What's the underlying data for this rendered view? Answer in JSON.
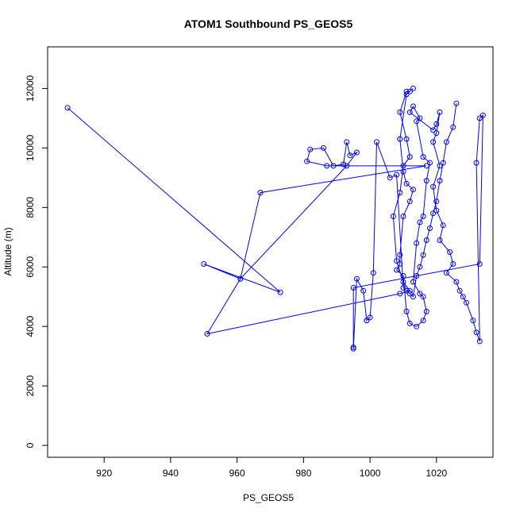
{
  "chart_data": {
    "type": "scatter",
    "title": "ATOM1 Southbound PS_GEOS5",
    "xlabel": "PS_GEOS5",
    "ylabel": "Altitude (m)",
    "xlim": [
      903,
      1037
    ],
    "ylim": [
      -400,
      13400
    ],
    "xticks": [
      920,
      940,
      960,
      980,
      1000,
      1020
    ],
    "yticks": [
      0,
      2000,
      4000,
      6000,
      8000,
      10000,
      12000
    ],
    "grid": false,
    "legend": "none",
    "colors": {
      "series": "#0000ff",
      "axis": "#000000",
      "background": "#ffffff"
    },
    "series": [
      {
        "marker": "open-circle",
        "line": true,
        "x": [
          909,
          973,
          950,
          961,
          967,
          1017,
          987,
          981,
          982,
          986,
          989,
          992,
          993,
          994,
          996,
          993,
          961,
          951,
          1009,
          1012,
          1010,
          1008,
          1007,
          1009,
          1010,
          1012,
          1011,
          1009,
          1011,
          1012,
          1013,
          1011,
          1009,
          1010,
          1011,
          1013,
          1012,
          1010,
          1009,
          1009,
          1008,
          1010,
          1011,
          1012,
          1014,
          1016,
          1017,
          1016,
          1015,
          1013,
          1014,
          1015,
          1016,
          1017,
          1018,
          1016,
          1014,
          1015,
          1013,
          1012,
          1019,
          1020,
          1021,
          1020,
          1019,
          1021,
          1019,
          1020,
          1022,
          1021,
          1024,
          1025,
          1023,
          1026,
          1027,
          1028,
          1029,
          1031,
          1032,
          1033,
          1032,
          1033,
          1034,
          1033,
          995,
          995,
          995,
          996,
          998,
          999,
          999,
          1000,
          1001,
          1002,
          1006,
          1008,
          1010,
          1011,
          1012,
          1013,
          1014,
          1015,
          1016,
          1017,
          1018,
          1019,
          1020,
          1021,
          1022,
          1023,
          1025,
          1026
        ],
        "y": [
          11350,
          5150,
          6100,
          5600,
          8500,
          9400,
          9400,
          9550,
          9950,
          10000,
          9400,
          9450,
          10200,
          9750,
          9850,
          9400,
          5600,
          3750,
          5100,
          5200,
          5500,
          6200,
          7700,
          8500,
          9400,
          9700,
          10300,
          11200,
          11900,
          11900,
          12000,
          11800,
          10300,
          9200,
          8800,
          8600,
          8200,
          7700,
          6400,
          6100,
          5900,
          5700,
          4500,
          4100,
          4000,
          4200,
          4500,
          5000,
          5100,
          5500,
          6800,
          7500,
          7700,
          8900,
          9500,
          9700,
          10900,
          11000,
          11400,
          11200,
          10600,
          10800,
          11200,
          10500,
          10200,
          9400,
          8700,
          7900,
          7400,
          6900,
          6500,
          6100,
          5800,
          5500,
          5200,
          5000,
          4800,
          4200,
          3800,
          3500,
          9500,
          11000,
          11100,
          6100,
          5300,
          3300,
          3250,
          5600,
          5200,
          4200,
          4200,
          4300,
          5800,
          10200,
          9000,
          9100,
          5300,
          5200,
          5100,
          5000,
          5700,
          6000,
          6400,
          6900,
          7300,
          7800,
          8200,
          8900,
          9500,
          10200,
          10700,
          11500
        ]
      }
    ]
  }
}
